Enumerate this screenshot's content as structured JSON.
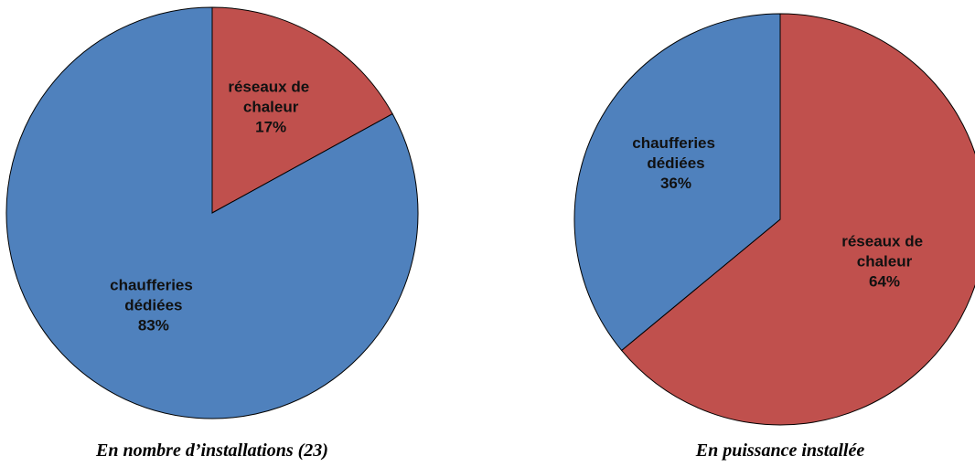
{
  "chart_data": [
    {
      "type": "pie",
      "title": "En nombre d’installations (23)",
      "categories": [
        "réseaux de chaleur",
        "chaufferies dédiées"
      ],
      "values": [
        17,
        83
      ],
      "value_labels": [
        "17%",
        "83%"
      ],
      "colors": [
        "#c0504d",
        "#4f81bd"
      ]
    },
    {
      "type": "pie",
      "title": "En puissance installée",
      "categories": [
        "réseaux de chaleur",
        "chaufferies dédiées"
      ],
      "values": [
        64,
        36
      ],
      "value_labels": [
        "64%",
        "36%"
      ],
      "colors": [
        "#c0504d",
        "#4f81bd"
      ]
    }
  ]
}
